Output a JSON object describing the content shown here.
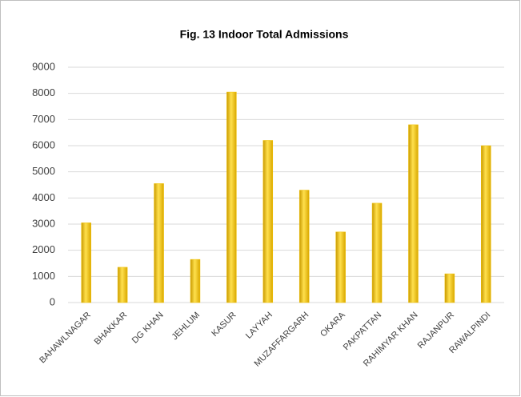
{
  "chart_data": {
    "type": "bar",
    "title": "Fig. 13 Indoor Total Admissions",
    "categories": [
      "BAHAWLNAGAR",
      "BHAKKAR",
      "DG KHAN",
      "JEHLUM",
      "KASUR",
      "LAYYAH",
      "MUZAFFARGARH",
      "OKARA",
      "PAKPATTAN",
      "RAHIMYAR KHAN",
      "RAJANPUR",
      "RAWALPINDI"
    ],
    "values": [
      3050,
      1350,
      4550,
      1650,
      8050,
      6200,
      4300,
      2700,
      3800,
      6800,
      1100,
      6000
    ],
    "color": "#f2c200",
    "ylim": [
      0,
      9000
    ],
    "yticks": [
      0,
      1000,
      2000,
      3000,
      4000,
      5000,
      6000,
      7000,
      8000,
      9000
    ],
    "grid": true
  }
}
